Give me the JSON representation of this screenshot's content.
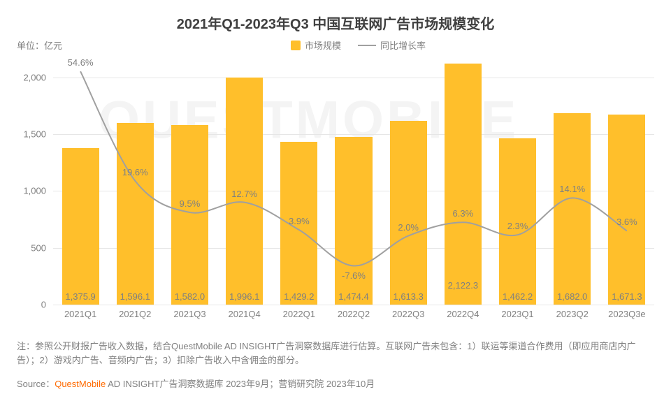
{
  "title": "2021年Q1-2023年Q3 中国互联网广告市场规模变化",
  "title_fontsize": 20,
  "unit_label": "单位：亿元",
  "legend": {
    "bar_label": "市场规模",
    "line_label": "同比增长率"
  },
  "chart": {
    "type": "bar+line",
    "background_color": "#ffffff",
    "grid_color": "#e6e6e6",
    "bar_color": "#ffbf2b",
    "line_color": "#a0a0a0",
    "axis_label_color": "#808080",
    "axis_fontsize": 13,
    "value_fontsize": 13,
    "pct_fontsize": 13,
    "ylim": [
      0,
      2200
    ],
    "yticks": [
      0,
      500,
      1000,
      1500,
      2000
    ],
    "ytick_labels": [
      "0",
      "500",
      "1,000",
      "1,500",
      "2,000"
    ],
    "bar_width_ratio": 0.68,
    "categories": [
      "2021Q1",
      "2021Q2",
      "2021Q3",
      "2021Q4",
      "2022Q1",
      "2022Q2",
      "2022Q3",
      "2022Q4",
      "2023Q1",
      "2023Q2",
      "2023Q3e"
    ],
    "bar_values": [
      1375.9,
      1596.1,
      1582.0,
      1996.1,
      1429.2,
      1474.4,
      1613.3,
      2122.3,
      1462.2,
      1682.0,
      1671.3
    ],
    "bar_value_labels": [
      "1,375.9",
      "1,596.1",
      "1,582.0",
      "1,996.1",
      "1,429.2",
      "1,474.4",
      "1,613.3",
      "2,122.3",
      "1,462.2",
      "1,682.0",
      "1,671.3"
    ],
    "bar_value_label_inside": [
      true,
      true,
      true,
      true,
      true,
      true,
      true,
      true,
      true,
      true,
      true
    ],
    "bar_value_label_y_offset_inside": 200,
    "growth_values": [
      54.6,
      19.6,
      9.5,
      12.7,
      3.9,
      -7.6,
      2.0,
      6.3,
      2.3,
      14.1,
      3.6
    ],
    "growth_labels": [
      "54.6%",
      "19.6%",
      "9.5%",
      "12.7%",
      "3.9%",
      "-7.6%",
      "2.0%",
      "6.3%",
      "2.3%",
      "14.1%",
      "3.6%"
    ],
    "growth_y_min": -20,
    "growth_y_max": 60,
    "growth_label_above": [
      true,
      true,
      true,
      true,
      true,
      false,
      true,
      true,
      true,
      true,
      true
    ],
    "line_width": 2
  },
  "footnote": "注：参照公开财报广告收入数据，结合QuestMobile AD INSIGHT广告洞察数据库进行估算。互联网广告未包含：1）联运等渠道合作费用（即应用商店内广告）；2）游戏内广告、音频内广告；3）扣除广告收入中含佣金的部分。",
  "footnote_fontsize": 13,
  "source_prefix": "Source：",
  "source_brand": "QuestMobile",
  "source_rest": " AD INSIGHT广告洞察数据库 2023年9月；营销研究院 2023年10月",
  "source_fontsize": 13,
  "watermark": "QUESTMOBILE"
}
